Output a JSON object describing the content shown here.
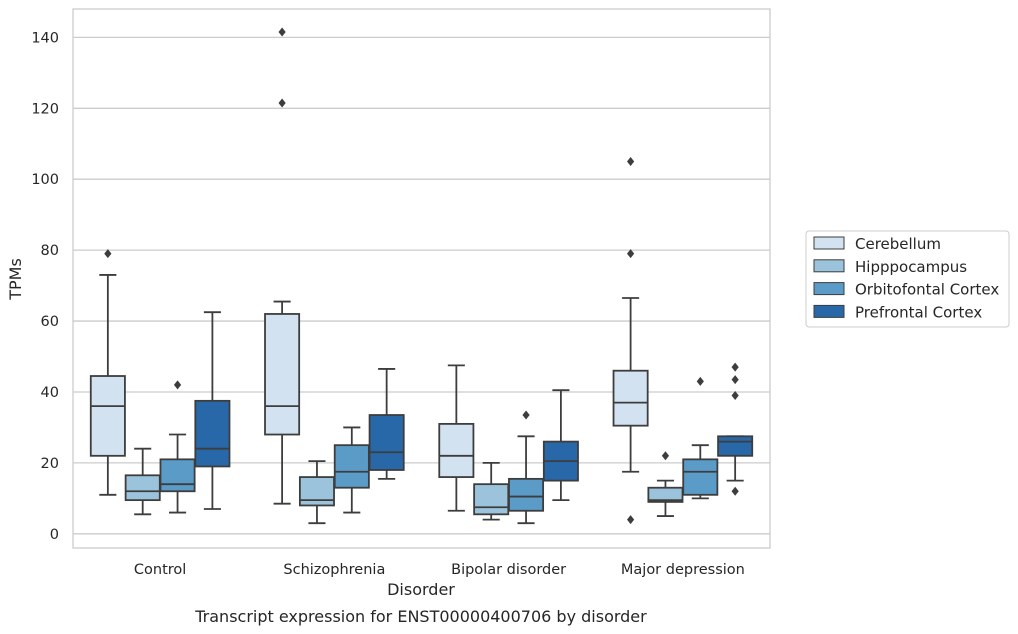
{
  "caption": "Transcript expression for ENST00000400706 by disorder",
  "chart_data": {
    "type": "boxplot",
    "xlabel": "Disorder",
    "ylabel": "TPMs",
    "ylim": [
      -4,
      148
    ],
    "yticks": [
      0,
      20,
      40,
      60,
      80,
      100,
      120,
      140
    ],
    "grid": true,
    "legend_position": "right",
    "categories": [
      "Control",
      "Schizophrenia",
      "Bipolar disorder",
      "Major depression"
    ],
    "series": [
      {
        "name": "Cerebellum",
        "color": "#d3e2f1",
        "boxes": [
          {
            "whisker_low": 11,
            "q1": 22,
            "median": 36,
            "q3": 44.5,
            "whisker_high": 73,
            "outliers": [
              79
            ]
          },
          {
            "whisker_low": 8.5,
            "q1": 28,
            "median": 36,
            "q3": 62,
            "whisker_high": 65.5,
            "outliers": [
              121.5,
              141.5
            ]
          },
          {
            "whisker_low": 6.5,
            "q1": 16,
            "median": 22,
            "q3": 31,
            "whisker_high": 47.5,
            "outliers": []
          },
          {
            "whisker_low": 17.5,
            "q1": 30.5,
            "median": 37,
            "q3": 46,
            "whisker_high": 66.5,
            "outliers": [
              79,
              105,
              4
            ]
          }
        ]
      },
      {
        "name": "Hipppocampus",
        "color": "#9bc4dc",
        "boxes": [
          {
            "whisker_low": 5.5,
            "q1": 9.5,
            "median": 12,
            "q3": 16.5,
            "whisker_high": 24,
            "outliers": []
          },
          {
            "whisker_low": 3,
            "q1": 8,
            "median": 9.5,
            "q3": 16,
            "whisker_high": 20.5,
            "outliers": []
          },
          {
            "whisker_low": 4,
            "q1": 5.5,
            "median": 7.5,
            "q3": 14,
            "whisker_high": 20,
            "outliers": []
          },
          {
            "whisker_low": 5,
            "q1": 9,
            "median": 9.5,
            "q3": 13,
            "whisker_high": 15,
            "outliers": [
              22
            ]
          }
        ]
      },
      {
        "name": "Orbitofontal Cortex",
        "color": "#5b9bc8",
        "boxes": [
          {
            "whisker_low": 6,
            "q1": 12,
            "median": 14,
            "q3": 21,
            "whisker_high": 28,
            "outliers": [
              42
            ]
          },
          {
            "whisker_low": 6,
            "q1": 13,
            "median": 17.5,
            "q3": 25,
            "whisker_high": 30,
            "outliers": []
          },
          {
            "whisker_low": 3,
            "q1": 6.5,
            "median": 10.5,
            "q3": 15.5,
            "whisker_high": 27.5,
            "outliers": [
              33.5
            ]
          },
          {
            "whisker_low": 10,
            "q1": 11,
            "median": 17.5,
            "q3": 21,
            "whisker_high": 25,
            "outliers": [
              43
            ]
          }
        ]
      },
      {
        "name": "Prefrontal Cortex",
        "color": "#2868a8",
        "boxes": [
          {
            "whisker_low": 7,
            "q1": 19,
            "median": 24,
            "q3": 37.5,
            "whisker_high": 62.5,
            "outliers": []
          },
          {
            "whisker_low": 15.5,
            "q1": 18,
            "median": 23,
            "q3": 33.5,
            "whisker_high": 46.5,
            "outliers": []
          },
          {
            "whisker_low": 9.5,
            "q1": 15,
            "median": 20.5,
            "q3": 26,
            "whisker_high": 40.5,
            "outliers": []
          },
          {
            "whisker_low": 15,
            "q1": 22,
            "median": 26,
            "q3": 27.5,
            "whisker_high": 27.5,
            "outliers": [
              12,
              39,
              43.5,
              47
            ]
          }
        ]
      }
    ]
  }
}
